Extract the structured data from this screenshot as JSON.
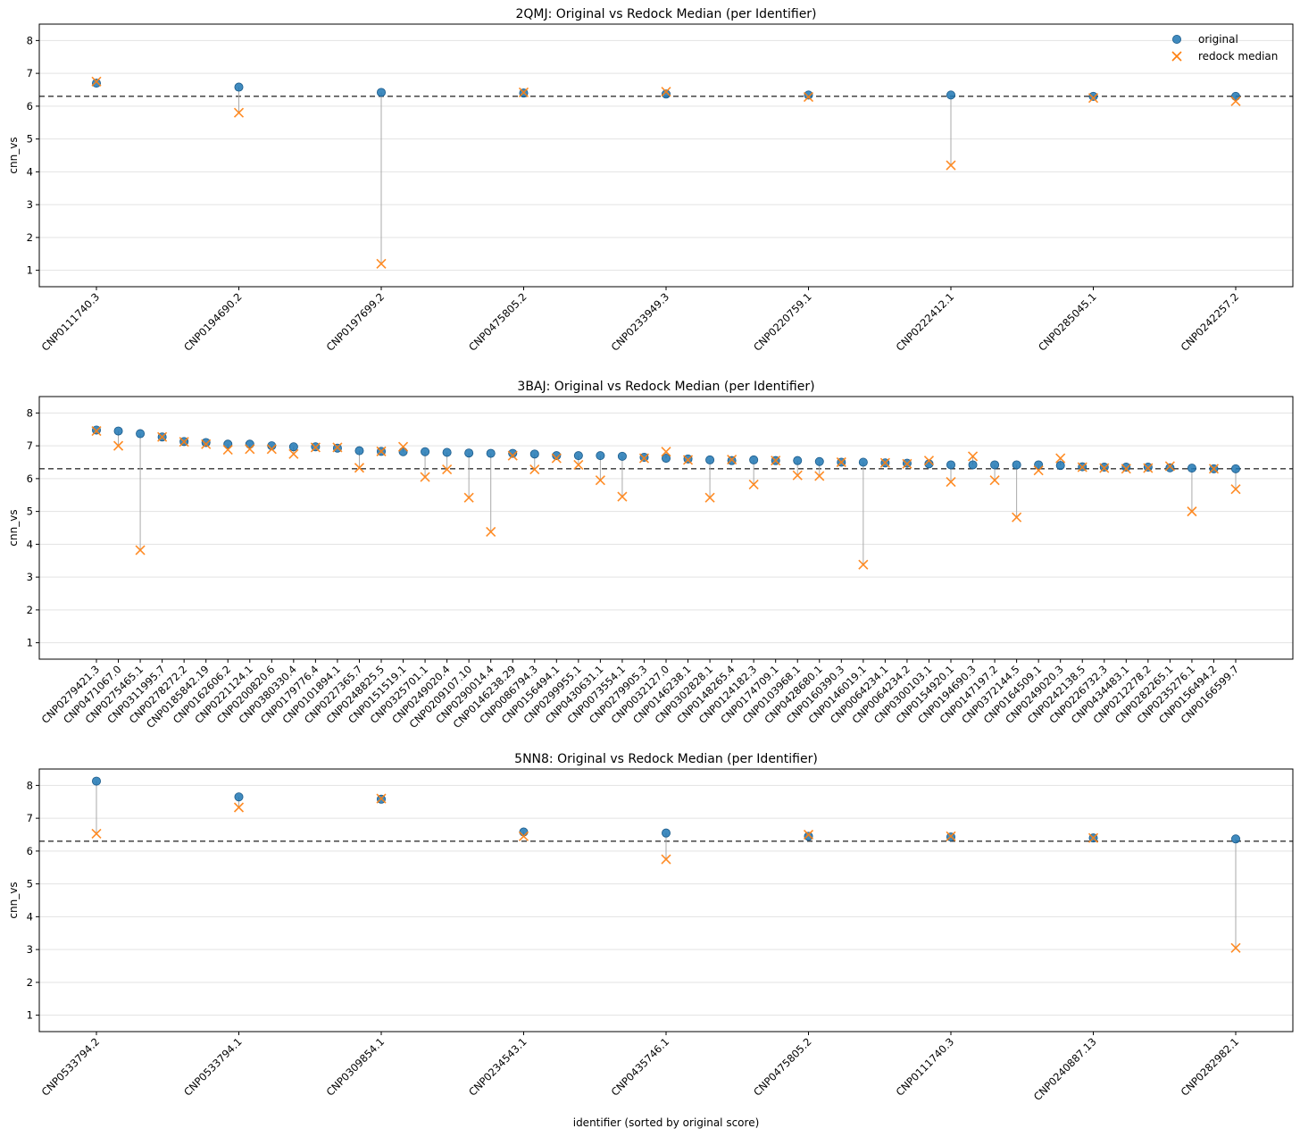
{
  "chart_data": [
    {
      "type": "scatter",
      "title": "2QMJ: Original vs Redock Median (per Identifier)",
      "ylabel": "cnn_vs",
      "xlabel": "",
      "ylim": [
        0.5,
        8.5
      ],
      "yticks": [
        1,
        2,
        3,
        4,
        5,
        6,
        7,
        8
      ],
      "reference_line": 6.3,
      "grid": "y",
      "legend": "top-right",
      "categories": [
        "CNP0111740.3",
        "CNP0194690.2",
        "CNP0197699.2",
        "CNP0475805.2",
        "CNP0233949.3",
        "CNP0220759.1",
        "CNP0222412.1",
        "CNP0285045.1",
        "CNP0242257.2"
      ],
      "series": [
        {
          "name": "original",
          "marker": "circle",
          "color": "#1f77b4",
          "values": [
            6.7,
            6.58,
            6.42,
            6.4,
            6.37,
            6.34,
            6.34,
            6.3,
            6.3
          ]
        },
        {
          "name": "redock median",
          "marker": "x",
          "color": "#ff7f0e",
          "values": [
            6.75,
            5.8,
            1.2,
            6.42,
            6.44,
            6.28,
            4.2,
            6.25,
            6.15
          ]
        }
      ]
    },
    {
      "type": "scatter",
      "title": "3BAJ: Original vs Redock Median (per Identifier)",
      "ylabel": "cnn_vs",
      "xlabel": "",
      "ylim": [
        0.5,
        8.5
      ],
      "yticks": [
        1,
        2,
        3,
        4,
        5,
        6,
        7,
        8
      ],
      "reference_line": 6.3,
      "grid": "y",
      "legend": "none",
      "categories": [
        "CNP0279421.3",
        "CNP0471067.0",
        "CNP0275465.1",
        "CNP0311995.7",
        "CNP0278272.2",
        "CNP0185842.19",
        "CNP0162606.2",
        "CNP0221124.1",
        "CNP0200820.6",
        "CNP0380330.4",
        "CNP0179776.4",
        "CNP0101894.1",
        "CNP0227365.7",
        "CNP0248825.5",
        "CNP0151519.1",
        "CNP0325701.1",
        "CNP0249020.4",
        "CNP0209107.10",
        "CNP0290014.4",
        "CNP0146238.29",
        "CNP0086794.3",
        "CNP0156494.1",
        "CNP0299955.1",
        "CNP0430631.1",
        "CNP0073554.1",
        "CNP0279905.3",
        "CNP0032127.0",
        "CNP0146238.1",
        "CNP0302828.1",
        "CNP0148265.4",
        "CNP0124182.3",
        "CNP0174709.1",
        "CNP0103968.1",
        "CNP0428680.1",
        "CNP0160390.3",
        "CNP0146019.1",
        "CNP0064234.1",
        "CNP0064234.2",
        "CNP0300103.1",
        "CNP0154920.1",
        "CNP0194690.3",
        "CNP0147197.2",
        "CNP0372144.5",
        "CNP0164509.1",
        "CNP0249020.3",
        "CNP0242138.5",
        "CNP0226732.3",
        "CNP0434483.1",
        "CNP0212278.2",
        "CNP0282265.1",
        "CNP0235276.1",
        "CNP0156494.2",
        "CNP0166599.7"
      ],
      "series": [
        {
          "name": "original",
          "marker": "circle",
          "color": "#1f77b4",
          "values": [
            7.48,
            7.45,
            7.37,
            7.27,
            7.13,
            7.1,
            7.05,
            7.05,
            7.0,
            6.97,
            6.97,
            6.93,
            6.85,
            6.83,
            6.82,
            6.82,
            6.8,
            6.78,
            6.77,
            6.77,
            6.75,
            6.7,
            6.7,
            6.7,
            6.68,
            6.65,
            6.62,
            6.6,
            6.57,
            6.55,
            6.57,
            6.55,
            6.55,
            6.52,
            6.5,
            6.5,
            6.48,
            6.47,
            6.45,
            6.42,
            6.42,
            6.42,
            6.42,
            6.42,
            6.4,
            6.36,
            6.35,
            6.35,
            6.35,
            6.33,
            6.32,
            6.3,
            6.3
          ]
        },
        {
          "name": "redock median",
          "marker": "x",
          "color": "#ff7f0e",
          "values": [
            7.45,
            7.0,
            3.82,
            7.27,
            7.12,
            7.05,
            6.88,
            6.9,
            6.9,
            6.75,
            6.95,
            6.95,
            6.33,
            6.83,
            6.97,
            6.05,
            6.28,
            5.42,
            4.38,
            6.7,
            6.28,
            6.62,
            6.42,
            5.95,
            5.45,
            6.62,
            6.82,
            6.57,
            5.42,
            6.58,
            5.82,
            6.55,
            6.1,
            6.08,
            6.5,
            3.38,
            6.48,
            6.45,
            6.55,
            5.9,
            6.68,
            5.95,
            4.82,
            6.25,
            6.62,
            6.35,
            6.32,
            6.3,
            6.32,
            6.38,
            5.0,
            6.3,
            5.68
          ]
        }
      ]
    },
    {
      "type": "scatter",
      "title": "5NN8: Original vs Redock Median (per Identifier)",
      "ylabel": "cnn_vs",
      "xlabel": "identifier (sorted by original score)",
      "ylim": [
        0.5,
        8.5
      ],
      "yticks": [
        1,
        2,
        3,
        4,
        5,
        6,
        7,
        8
      ],
      "reference_line": 6.3,
      "grid": "y",
      "legend": "none",
      "categories": [
        "CNP0533794.2",
        "CNP0533794.1",
        "CNP0309854.1",
        "CNP0234543.1",
        "CNP0435746.1",
        "CNP0475805.2",
        "CNP0111740.3",
        "CNP0240887.13",
        "CNP0282982.1"
      ],
      "series": [
        {
          "name": "original",
          "marker": "circle",
          "color": "#1f77b4",
          "values": [
            8.13,
            7.65,
            7.58,
            6.58,
            6.55,
            6.45,
            6.43,
            6.4,
            6.37
          ]
        },
        {
          "name": "redock median",
          "marker": "x",
          "color": "#ff7f0e",
          "values": [
            6.53,
            7.33,
            7.6,
            6.45,
            5.75,
            6.5,
            6.45,
            6.4,
            3.05
          ]
        }
      ]
    }
  ]
}
